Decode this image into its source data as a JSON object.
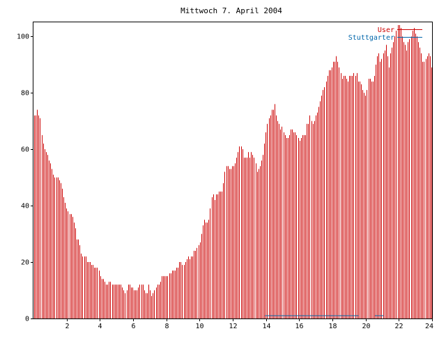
{
  "chart_data": {
    "type": "bar",
    "title": "Mittwoch 7. April 2004",
    "xlabel": "",
    "ylabel": "",
    "xlim": [
      0,
      24
    ],
    "ylim": [
      0,
      105
    ],
    "x_ticks": [
      2,
      4,
      6,
      8,
      10,
      12,
      14,
      16,
      18,
      20,
      22,
      24
    ],
    "y_ticks": [
      0,
      20,
      40,
      60,
      80,
      100
    ],
    "grid": false,
    "legend_placement": "top-right",
    "bins_per_hour": 12,
    "series": [
      {
        "name": "User",
        "color": "#cc0000",
        "values": [
          72,
          72,
          74,
          72,
          71,
          65,
          62,
          60,
          59,
          58,
          56,
          55,
          53,
          51,
          50,
          50,
          50,
          49,
          48,
          46,
          43,
          41,
          39,
          38,
          37,
          37,
          36,
          34,
          32,
          28,
          28,
          26,
          23,
          22,
          22,
          22,
          20,
          20,
          20,
          19,
          19,
          18,
          18,
          18,
          17,
          15,
          14,
          14,
          13,
          12,
          12,
          13,
          13,
          12,
          12,
          12,
          12,
          12,
          12,
          12,
          11,
          10,
          9,
          10,
          12,
          12,
          11,
          11,
          10,
          10,
          10,
          11,
          12,
          12,
          12,
          10,
          9,
          9,
          12,
          10,
          8,
          9,
          10,
          11,
          12,
          12,
          13,
          15,
          15,
          15,
          15,
          15,
          16,
          16,
          17,
          17,
          17,
          18,
          18,
          20,
          20,
          19,
          19,
          20,
          21,
          22,
          21,
          22,
          22,
          24,
          24,
          25,
          26,
          27,
          30,
          33,
          35,
          34,
          34,
          35,
          39,
          43,
          44,
          42,
          44,
          44,
          45,
          45,
          45,
          48,
          52,
          54,
          54,
          53,
          53,
          54,
          54,
          55,
          57,
          59,
          61,
          61,
          60,
          57,
          57,
          57,
          59,
          57,
          59,
          58,
          57,
          55,
          52,
          53,
          54,
          56,
          58,
          62,
          66,
          69,
          71,
          72,
          74,
          74,
          76,
          72,
          70,
          69,
          67,
          68,
          66,
          65,
          64,
          64,
          65,
          67,
          67,
          66,
          66,
          65,
          64,
          63,
          64,
          65,
          65,
          65,
          69,
          69,
          72,
          70,
          69,
          70,
          72,
          73,
          75,
          77,
          79,
          81,
          82,
          84,
          86,
          88,
          88,
          89,
          91,
          91,
          93,
          91,
          89,
          87,
          85,
          86,
          86,
          85,
          84,
          86,
          86,
          86,
          87,
          86,
          87,
          84,
          84,
          83,
          81,
          80,
          79,
          81,
          85,
          85,
          84,
          84,
          86,
          90,
          93,
          94,
          91,
          92,
          94,
          95,
          97,
          93,
          89,
          94,
          96,
          98,
          100,
          102,
          104,
          104,
          103,
          100,
          98,
          97,
          95,
          98,
          99,
          100,
          102,
          103,
          101,
          100,
          98,
          96,
          94,
          91,
          91,
          92,
          93,
          94,
          93,
          89
        ]
      },
      {
        "name": "Stuttgarter",
        "color": "#0066aa",
        "values": [
          0,
          0,
          0,
          0,
          0,
          0,
          0,
          0,
          0,
          0,
          0,
          0,
          0,
          0,
          0,
          0,
          0,
          0,
          0,
          0,
          0,
          0,
          0,
          0,
          0,
          0,
          0,
          0,
          0,
          0,
          0,
          0,
          0,
          0,
          0,
          0,
          0,
          0,
          0,
          0,
          0,
          0,
          0,
          0,
          0,
          0,
          0,
          0,
          0,
          0,
          0,
          0,
          0,
          0,
          0,
          0,
          0,
          0,
          0,
          0,
          0,
          0,
          0,
          0,
          0,
          0,
          0,
          0,
          0,
          0,
          0,
          0,
          0,
          0,
          0,
          0,
          0,
          0,
          0,
          0,
          0,
          0,
          0,
          0,
          0,
          0,
          0,
          0,
          0,
          0,
          0,
          0,
          0,
          0,
          0,
          0,
          0,
          0,
          0,
          0,
          0,
          0,
          0,
          0,
          0,
          0,
          0,
          0,
          0,
          0,
          0,
          0,
          0,
          0,
          0,
          0,
          0,
          0,
          0,
          0,
          0,
          0,
          0,
          0,
          0,
          0,
          0,
          0,
          0,
          0,
          0,
          0,
          0,
          0,
          0,
          0,
          0,
          0,
          0,
          0,
          0,
          0,
          0,
          0,
          0,
          0,
          0,
          0,
          0,
          0,
          0,
          0,
          0,
          0,
          0,
          0,
          0,
          0,
          1,
          1,
          1,
          1,
          1,
          1,
          1,
          1,
          1,
          1,
          1,
          1,
          1,
          1,
          1,
          1,
          1,
          1,
          1,
          1,
          1,
          1,
          1,
          1,
          1,
          1,
          1,
          1,
          1,
          1,
          1,
          1,
          1,
          1,
          1,
          1,
          1,
          1,
          1,
          1,
          1,
          1,
          1,
          1,
          1,
          1,
          1,
          1,
          1,
          1,
          1,
          1,
          1,
          1,
          1,
          1,
          1,
          1,
          1,
          1,
          1,
          1,
          1,
          1,
          0,
          0,
          0,
          0,
          0,
          0,
          0,
          0,
          0,
          0,
          0,
          1,
          1,
          1,
          1,
          1,
          1,
          0,
          0,
          0,
          0,
          0,
          0,
          0,
          0,
          0,
          0,
          0,
          0,
          0,
          0,
          0,
          0,
          0,
          0,
          0,
          0,
          0,
          0,
          0,
          0,
          0,
          0,
          0,
          0,
          0,
          0,
          0,
          0,
          0,
          0,
          0,
          0,
          0,
          0,
          0,
          0,
          0,
          0,
          0
        ]
      }
    ]
  }
}
